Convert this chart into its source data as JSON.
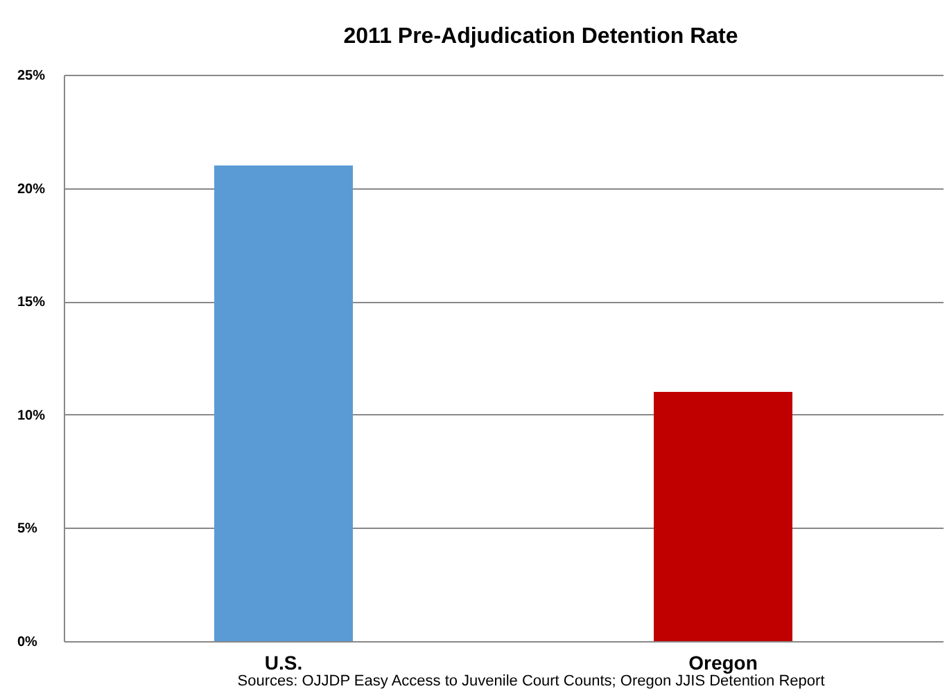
{
  "chart_data": {
    "type": "bar",
    "title": "2011 Pre-Adjudication Detention Rate",
    "categories": [
      "U.S.",
      "Oregon"
    ],
    "values": [
      21,
      11
    ],
    "colors": [
      "#5b9bd5",
      "#c00000"
    ],
    "ylim": [
      0,
      25
    ],
    "yticks": [
      {
        "value": 0,
        "label": "0%"
      },
      {
        "value": 5,
        "label": "5%"
      },
      {
        "value": 10,
        "label": "10%"
      },
      {
        "value": 15,
        "label": "15%"
      },
      {
        "value": 20,
        "label": "20%"
      },
      {
        "value": 25,
        "label": "25%"
      }
    ],
    "grid": "y",
    "legend": false,
    "annotations": [
      "Sources: OJJDP Easy Access to Juvenile Court Counts; Oregon JJIS Detention Report"
    ]
  }
}
